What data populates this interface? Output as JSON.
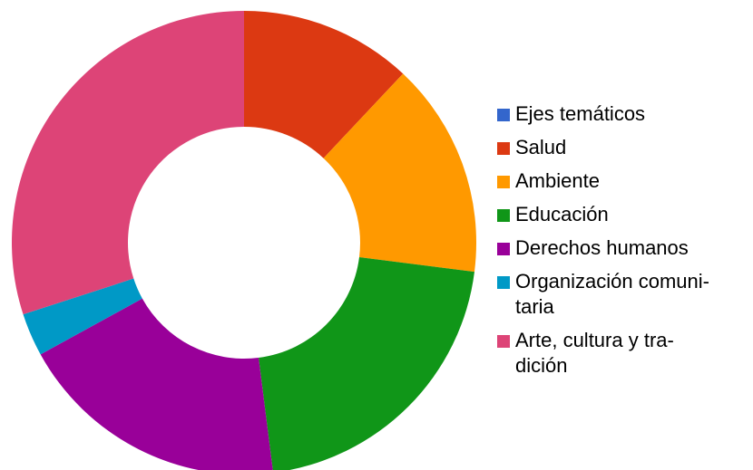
{
  "chart_data": {
    "type": "pie",
    "donut": true,
    "legend_position": "right",
    "categories": [
      "Ejes temáticos",
      "Salud",
      "Ambiente",
      "Educación",
      "Derechos humanos",
      "Organización comuni-\ntaria",
      "Arte, cultura y tra-\ndición"
    ],
    "values": [
      0,
      12,
      15,
      21,
      19,
      3,
      30
    ],
    "colors": [
      "#3366cc",
      "#dc3912",
      "#ff9900",
      "#109618",
      "#990099",
      "#0099c6",
      "#dd4477"
    ]
  }
}
